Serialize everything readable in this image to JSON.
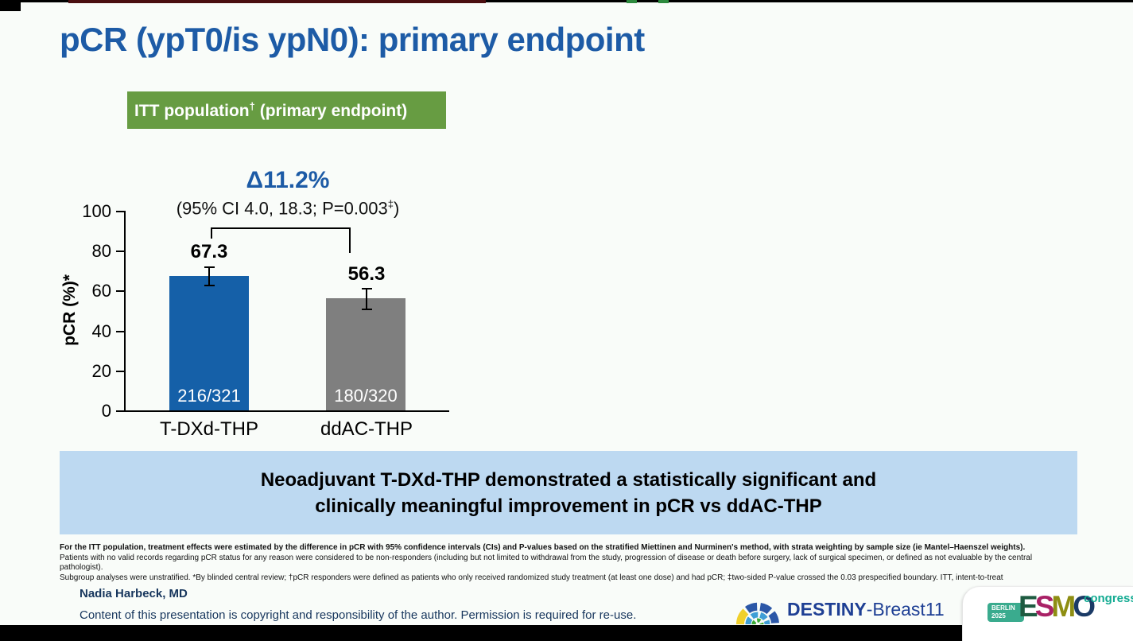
{
  "slide": {
    "title": "pCR (ypT0/is ypN0): primary endpoint",
    "badge": {
      "pre": "ITT population",
      "sup": "†",
      "post": " (primary endpoint)"
    }
  },
  "chart_data": {
    "type": "bar",
    "ylabel": "pCR (%)*",
    "ylim": [
      0,
      100
    ],
    "yticks": [
      0,
      20,
      40,
      60,
      80,
      100
    ],
    "categories": [
      "T-DXd-THP",
      "ddAC-THP"
    ],
    "values": [
      67.3,
      56.3
    ],
    "bar_labels": [
      "216/321",
      "180/320"
    ],
    "bar_colors": [
      "#1560a8",
      "#7f7f7f"
    ],
    "error_bars": [
      [
        62.0,
        72.3
      ],
      [
        50.3,
        61.5
      ]
    ],
    "delta_label": "Δ11.2%",
    "ci_label": {
      "pre": "(95% CI 4.0, 18.3; P=0.003",
      "sup": "‡",
      "post": ")"
    },
    "grid": false,
    "legend": "none"
  },
  "banner": {
    "line1": "Neoadjuvant T-DXd-THP demonstrated a statistically significant and",
    "line2": "clinically meaningful improvement in pCR vs ddAC-THP"
  },
  "footnotes": {
    "line1": "For the ITT population, treatment effects were estimated by the difference in pCR with 95% confidence intervals (CIs) and P-values based on the stratified Miettinen and Nurminen's method, with strata weighting by sample size (ie Mantel–Haenszel weights).",
    "line2": "Patients with no valid records regarding pCR status for any reason were considered to be non-responders (including but not limited to withdrawal from the study, progression of disease or death before surgery, lack of surgical specimen, or defined as not evaluable by the central pathologist).",
    "line3": "Subgroup analyses were unstratified. *By blinded central review; †pCR responders were defined as patients who only received randomized study treatment (at least one dose) and had pCR; ‡two-sided P-value crossed the 0.03 prespecified boundary. ITT, intent-to-treat"
  },
  "footer": {
    "author": "Nadia Harbeck, MD",
    "copyright": "Content of this presentation is copyright and responsibility of the author. Permission is required for re-use.",
    "trial_logo": {
      "bold": "DESTINY",
      "rest": "-Breast11"
    },
    "esmo": {
      "city": "BERLIN",
      "year": "2025",
      "l1": "E",
      "l2": "S",
      "l3": "M",
      "l4": "O",
      "congress": "congress"
    }
  },
  "colors": {
    "title_blue": "#1d5ba6",
    "badge_green": "#679c42",
    "banner_blue": "#bdd9f1",
    "bar_blue": "#1560a8",
    "bar_gray": "#7f7f7f"
  }
}
